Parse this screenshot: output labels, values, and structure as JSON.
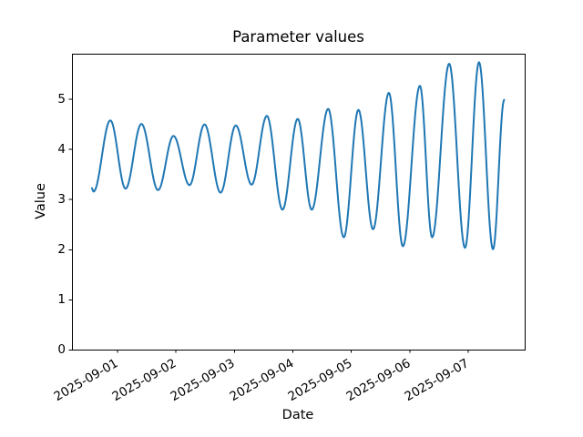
{
  "figure": {
    "background": "#ffffff",
    "spine_color": "#000000",
    "text_color": "#000000"
  },
  "chart_data": {
    "type": "line",
    "title": "Parameter values",
    "xlabel": "Date",
    "ylabel": "Value",
    "grid": false,
    "legend": null,
    "xlim": [
      "2025-08-31T05:30",
      "2025-09-07T23:20"
    ],
    "ylim": [
      0,
      5.9
    ],
    "x_ticks": [
      "2025-09-01",
      "2025-09-02",
      "2025-09-03",
      "2025-09-04",
      "2025-09-05",
      "2025-09-06",
      "2025-09-07"
    ],
    "y_ticks": [
      0,
      1,
      2,
      3,
      4,
      5
    ],
    "interpolation": "cosine-through-extrema",
    "series": [
      {
        "name": "Parameter value",
        "color": "#1f77b4",
        "line_width": 2,
        "points": [
          [
            "2025-08-31T13:40",
            3.22
          ],
          [
            "2025-08-31T14:20",
            3.15
          ],
          [
            "2025-08-31T21:15",
            4.57
          ],
          [
            "2025-09-01T03:30",
            3.21
          ],
          [
            "2025-09-01T10:00",
            4.5
          ],
          [
            "2025-09-01T16:50",
            3.18
          ],
          [
            "2025-09-01T23:10",
            4.26
          ],
          [
            "2025-09-02T05:45",
            3.28
          ],
          [
            "2025-09-02T11:55",
            4.49
          ],
          [
            "2025-09-02T18:30",
            3.13
          ],
          [
            "2025-09-03T00:45",
            4.47
          ],
          [
            "2025-09-03T07:15",
            3.29
          ],
          [
            "2025-09-03T13:30",
            4.66
          ],
          [
            "2025-09-03T19:55",
            2.79
          ],
          [
            "2025-09-04T02:10",
            4.6
          ],
          [
            "2025-09-04T07:55",
            2.79
          ],
          [
            "2025-09-04T14:40",
            4.8
          ],
          [
            "2025-09-04T21:05",
            2.24
          ],
          [
            "2025-09-05T03:05",
            4.78
          ],
          [
            "2025-09-05T09:05",
            2.4
          ],
          [
            "2025-09-05T15:35",
            5.12
          ],
          [
            "2025-09-05T21:20",
            2.06
          ],
          [
            "2025-09-06T04:20",
            5.26
          ],
          [
            "2025-09-06T09:20",
            2.24
          ],
          [
            "2025-09-06T16:20",
            5.7
          ],
          [
            "2025-09-06T22:50",
            2.03
          ],
          [
            "2025-09-07T04:35",
            5.73
          ],
          [
            "2025-09-07T10:20",
            2.0
          ],
          [
            "2025-09-07T14:55",
            4.98
          ]
        ]
      }
    ]
  }
}
